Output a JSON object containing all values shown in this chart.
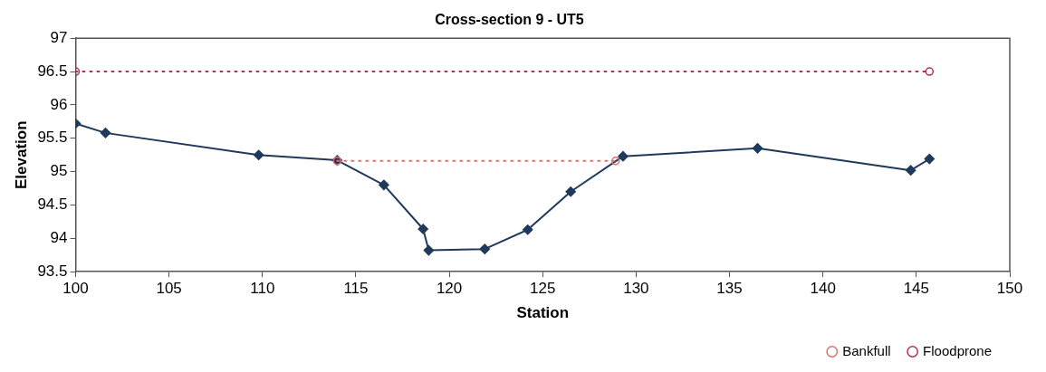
{
  "chart_data": {
    "type": "line",
    "title": "Cross-section 9 - UT5",
    "xlabel": "Station",
    "ylabel": "Elevation",
    "xlim": [
      100,
      150
    ],
    "xticks": [
      100,
      105,
      110,
      115,
      120,
      125,
      130,
      135,
      140,
      145,
      150
    ],
    "ylim": [
      93.5,
      97
    ],
    "yticks": [
      93.5,
      94,
      94.5,
      95,
      95.5,
      96,
      96.5,
      97
    ],
    "grid": false,
    "legend": "bottom right",
    "series": [
      {
        "color": "#1f3a5a",
        "marker": "diamond",
        "line_style": "solid",
        "x": [
          100,
          101.6,
          109.8,
          114,
          116.5,
          118.6,
          118.9,
          121.9,
          124.2,
          126.5,
          129.3,
          136.5,
          144.7,
          145.7
        ],
        "values": [
          95.72,
          95.58,
          95.25,
          95.17,
          94.8,
          94.14,
          93.82,
          93.84,
          94.13,
          94.7,
          95.23,
          95.35,
          95.02,
          95.19
        ]
      },
      {
        "name": "Bankfull",
        "color": "#e07070",
        "marker": "circle",
        "line_style": "dotted",
        "x": [
          114,
          128.9
        ],
        "values": [
          95.16,
          95.16
        ]
      },
      {
        "name": "Floodprone",
        "color": "#b03050",
        "marker": "circle",
        "line_style": "dotted",
        "x": [
          100,
          145.7
        ],
        "values": [
          96.5,
          96.5
        ]
      }
    ]
  }
}
